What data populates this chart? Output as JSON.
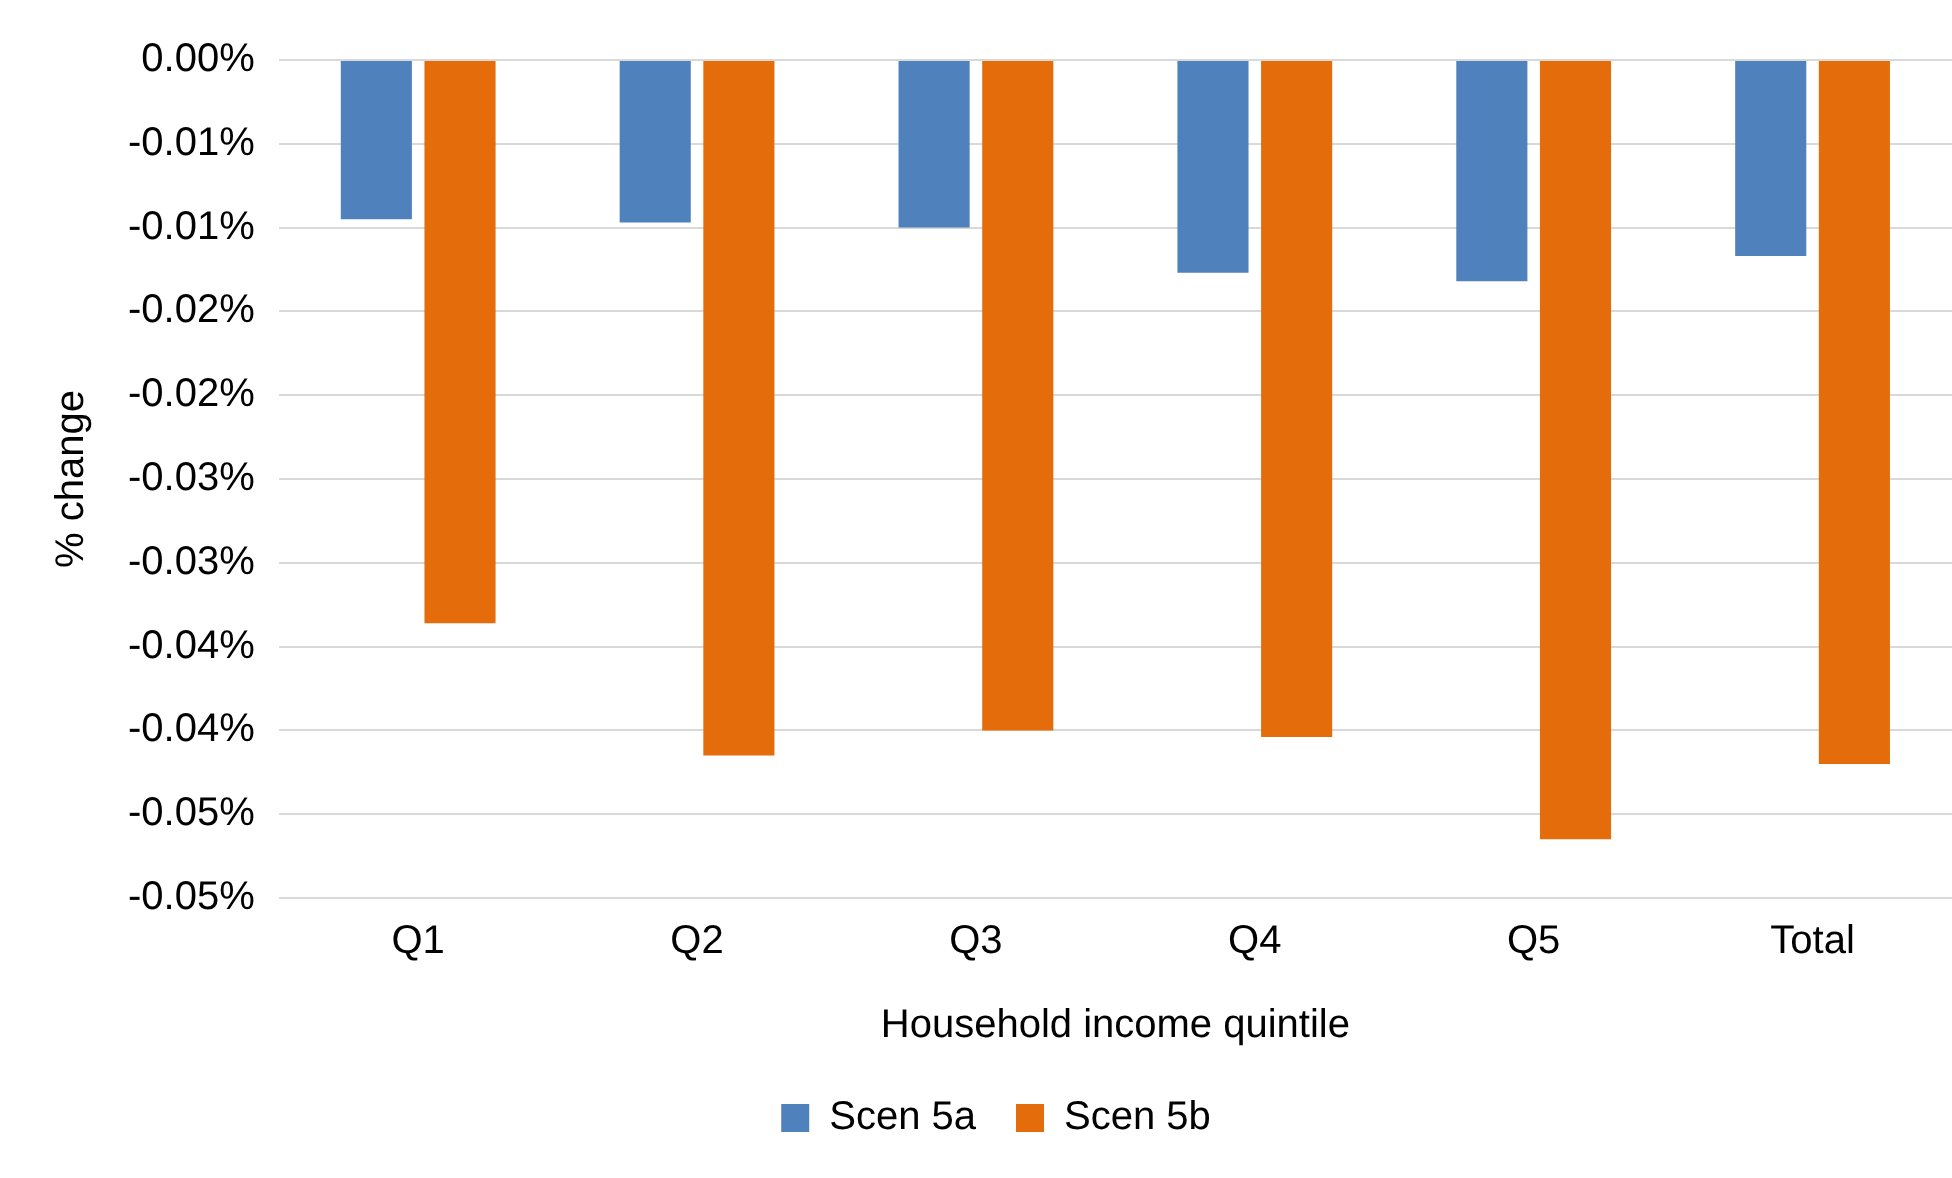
{
  "chart_data": {
    "type": "bar",
    "xlabel": "Household income quintile",
    "ylabel": "% change",
    "categories": [
      "Q1",
      "Q2",
      "Q3",
      "Q4",
      "Q5",
      "Total"
    ],
    "series": [
      {
        "name": "Scen 5a",
        "color": "#4f81bd",
        "values": [
          -0.0095,
          -0.0097,
          -0.01,
          -0.0127,
          -0.0132,
          -0.0117
        ]
      },
      {
        "name": "Scen 5b",
        "color": "#e46c0a",
        "values": [
          -0.0336,
          -0.0415,
          -0.04,
          -0.0404,
          -0.0465,
          -0.042
        ]
      }
    ],
    "ylim": [
      -0.05,
      0
    ],
    "yticks": [
      {
        "value": 0,
        "label": "0.00%"
      },
      {
        "value": -0.005,
        "label": "-0.01%"
      },
      {
        "value": -0.01,
        "label": "-0.01%"
      },
      {
        "value": -0.015,
        "label": "-0.02%"
      },
      {
        "value": -0.02,
        "label": "-0.02%"
      },
      {
        "value": -0.025,
        "label": "-0.03%"
      },
      {
        "value": -0.03,
        "label": "-0.03%"
      },
      {
        "value": -0.035,
        "label": "-0.04%"
      },
      {
        "value": -0.04,
        "label": "-0.04%"
      },
      {
        "value": -0.045,
        "label": "-0.05%"
      },
      {
        "value": -0.05,
        "label": "-0.05%"
      }
    ],
    "grid": "y",
    "legend": "bottom"
  }
}
